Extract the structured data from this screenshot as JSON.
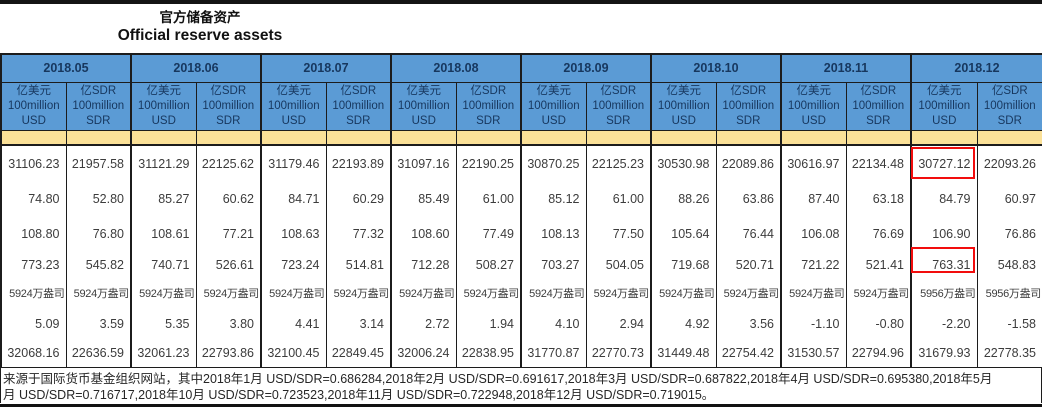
{
  "page": {
    "title_zh": "官方储备资产",
    "title_en": "Official reserve assets"
  },
  "table": {
    "months": [
      "2018.05",
      "2018.06",
      "2018.07",
      "2018.08",
      "2018.09",
      "2018.10",
      "2018.11",
      "2018.12"
    ],
    "unit_usd": [
      "亿美元",
      "100million",
      "USD"
    ],
    "unit_sdr": [
      "亿SDR",
      "100million",
      "SDR"
    ],
    "rows": [
      [
        "31106.23",
        "21957.58",
        "31121.29",
        "22125.62",
        "31179.46",
        "22193.89",
        "31097.16",
        "22190.25",
        "30870.25",
        "22125.23",
        "30530.98",
        "22089.86",
        "30616.97",
        "22134.48",
        "30727.12",
        "22093.26"
      ],
      [
        "74.80",
        "52.80",
        "85.27",
        "60.62",
        "84.71",
        "60.29",
        "85.49",
        "61.00",
        "85.12",
        "61.00",
        "88.26",
        "63.86",
        "87.40",
        "63.18",
        "84.79",
        "60.97"
      ],
      [
        "108.80",
        "76.80",
        "108.61",
        "77.21",
        "108.63",
        "77.32",
        "108.60",
        "77.49",
        "108.13",
        "77.50",
        "105.64",
        "76.44",
        "106.08",
        "76.69",
        "106.90",
        "76.86"
      ],
      [
        "773.23",
        "545.82",
        "740.71",
        "526.61",
        "723.24",
        "514.81",
        "712.28",
        "508.27",
        "703.27",
        "504.05",
        "719.68",
        "520.71",
        "721.22",
        "521.41",
        "763.31",
        "548.83"
      ],
      [
        "5924万盎司",
        "5924万盎司",
        "5924万盎司",
        "5924万盎司",
        "5924万盎司",
        "5924万盎司",
        "5924万盎司",
        "5924万盎司",
        "5924万盎司",
        "5924万盎司",
        "5924万盎司",
        "5924万盎司",
        "5924万盎司",
        "5924万盎司",
        "5956万盎司",
        "5956万盎司"
      ],
      [
        "5.09",
        "3.59",
        "5.35",
        "3.80",
        "4.41",
        "3.14",
        "2.72",
        "1.94",
        "4.10",
        "2.94",
        "4.92",
        "3.56",
        "-1.10",
        "-0.80",
        "-2.20",
        "-1.58"
      ],
      [
        "32068.16",
        "22636.59",
        "32061.23",
        "22793.86",
        "32100.45",
        "22849.45",
        "32006.24",
        "22838.95",
        "31770.87",
        "22770.73",
        "31449.48",
        "22754.42",
        "31530.57",
        "22794.96",
        "31679.93",
        "22778.35"
      ]
    ],
    "highlights": [
      {
        "row": 0,
        "col": 14,
        "value": "30727.12"
      },
      {
        "row": 3,
        "col": 14,
        "value": "763.31"
      }
    ]
  },
  "footer": {
    "line1": "来源于国际货币基金组织网站，其中2018年1月 USD/SDR=0.686284,2018年2月 USD/SDR=0.691617,2018年3月 USD/SDR=0.687822,2018年4月 USD/SDR=0.695380,2018年5月",
    "line2": "月 USD/SDR=0.716717,2018年10月 USD/SDR=0.723523,2018年11月 USD/SDR=0.722948,2018年12月 USD/SDR=0.719015。"
  },
  "colors": {
    "header_blue": "#5B9BD5",
    "header_text": "#17375E",
    "band_yellow": "#FBE198",
    "highlight_red": "#F20D0D",
    "border_dark": "#1C1C1C"
  }
}
